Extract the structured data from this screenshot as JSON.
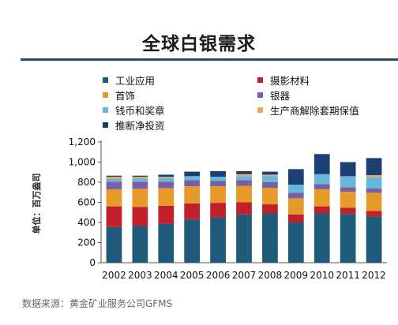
{
  "title": "全球白银需求",
  "source": "数据来源：黄金矿业服务公司GFMS",
  "chart_data": {
    "type": "bar",
    "stacked": true,
    "ylabel": "单位：百万盎司",
    "ylim": [
      0,
      1200
    ],
    "yticks": [
      "0",
      "200",
      "400",
      "600",
      "800",
      "1,000",
      "1,200"
    ],
    "ytick_values": [
      0,
      200,
      400,
      600,
      800,
      1000,
      1200
    ],
    "grid": false,
    "legend_position": "top",
    "categories": [
      "2002",
      "2003",
      "2004",
      "2005",
      "2006",
      "2007",
      "2008",
      "2009",
      "2010",
      "2011",
      "2012"
    ],
    "series": [
      {
        "name": "工业应用",
        "color": "#1f5a7a",
        "values": [
          355,
          365,
          385,
          430,
          450,
          480,
          490,
          400,
          490,
          485,
          460
        ]
      },
      {
        "name": "摄影材料",
        "color": "#c0202a",
        "values": [
          205,
          190,
          180,
          160,
          145,
          120,
          90,
          80,
          70,
          60,
          55
        ]
      },
      {
        "name": "首饰",
        "color": "#e69a2a",
        "values": [
          170,
          180,
          175,
          170,
          165,
          165,
          165,
          160,
          170,
          160,
          180
        ]
      },
      {
        "name": "银器",
        "color": "#7b5ea8",
        "values": [
          75,
          70,
          65,
          60,
          55,
          55,
          55,
          55,
          50,
          45,
          45
        ]
      },
      {
        "name": "钱币和奖章",
        "color": "#67b8d9",
        "values": [
          30,
          35,
          40,
          40,
          40,
          40,
          65,
          80,
          100,
          110,
          110
        ]
      },
      {
        "name": "生产商解除套期保值",
        "color": "#f4a460",
        "values": [
          20,
          15,
          10,
          0,
          0,
          20,
          10,
          0,
          0,
          0,
          20
        ]
      },
      {
        "name": "推断净投资",
        "color": "#1c3f73",
        "values": [
          10,
          10,
          20,
          45,
          55,
          30,
          30,
          155,
          200,
          140,
          170
        ]
      }
    ]
  }
}
